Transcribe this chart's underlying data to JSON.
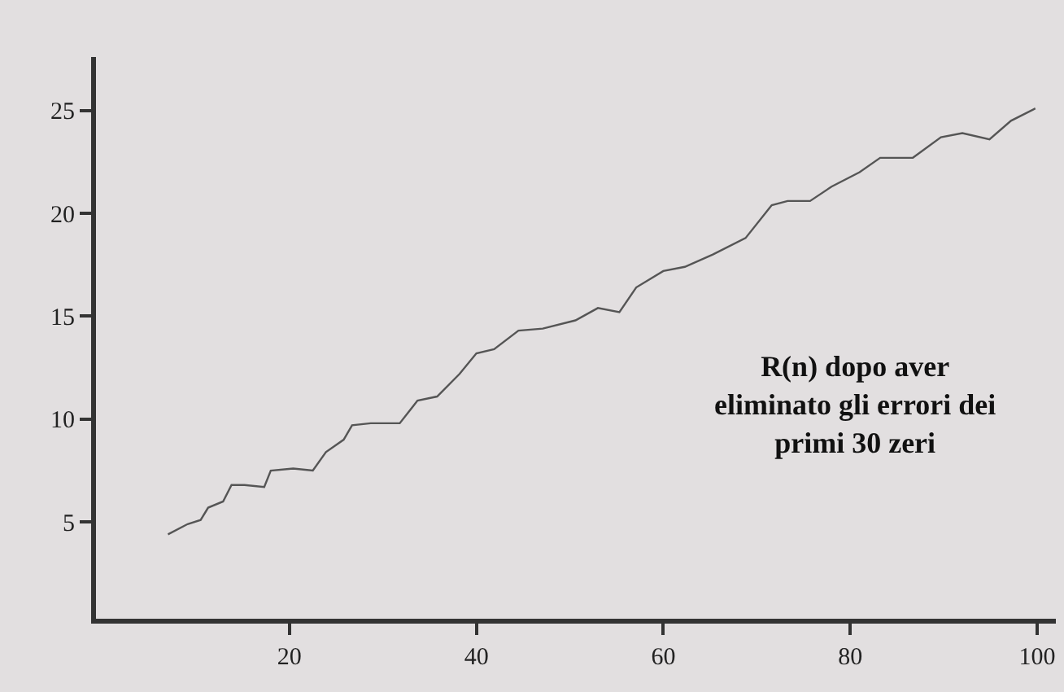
{
  "chart_data": {
    "type": "line",
    "x": [
      7,
      9.1,
      10.5,
      11.3,
      12.9,
      13.8,
      15.2,
      17.3,
      18,
      20.4,
      22.5,
      23.9,
      25.8,
      26.7,
      28.7,
      31.8,
      33.7,
      35.8,
      38.2,
      40,
      41.9,
      44.5,
      47.1,
      50.6,
      53,
      55.3,
      57.1,
      60,
      62.3,
      65.3,
      68.8,
      71.6,
      73.3,
      75.7,
      78,
      81,
      83.2,
      86.7,
      89.7,
      92,
      94.9,
      97.2,
      99.8
    ],
    "series": [
      {
        "color": "#555555",
        "values": [
          4.4,
          4.9,
          5.1,
          5.7,
          6.0,
          6.8,
          6.8,
          6.7,
          7.5,
          7.6,
          7.5,
          8.4,
          9.0,
          9.7,
          9.8,
          9.8,
          10.9,
          11.1,
          12.2,
          13.2,
          13.4,
          14.3,
          14.4,
          14.8,
          15.4,
          15.2,
          16.4,
          17.2,
          17.4,
          18.0,
          18.8,
          20.4,
          20.6,
          20.6,
          21.3,
          22.0,
          22.7,
          22.7,
          23.7,
          23.9,
          23.6,
          24.5,
          25.1
        ]
      }
    ],
    "xlim": [
      -0.7,
      102
    ],
    "ylim": [
      0.3,
      27.6
    ],
    "xticks": [
      20,
      40,
      60,
      80,
      100
    ],
    "yticks": [
      5,
      10,
      15,
      20,
      25
    ],
    "marker": "none",
    "line_style": "solid",
    "annotations": [
      "R(n) dopo aver\neliminato gli errori dei\nprimi 30 zeri"
    ]
  }
}
